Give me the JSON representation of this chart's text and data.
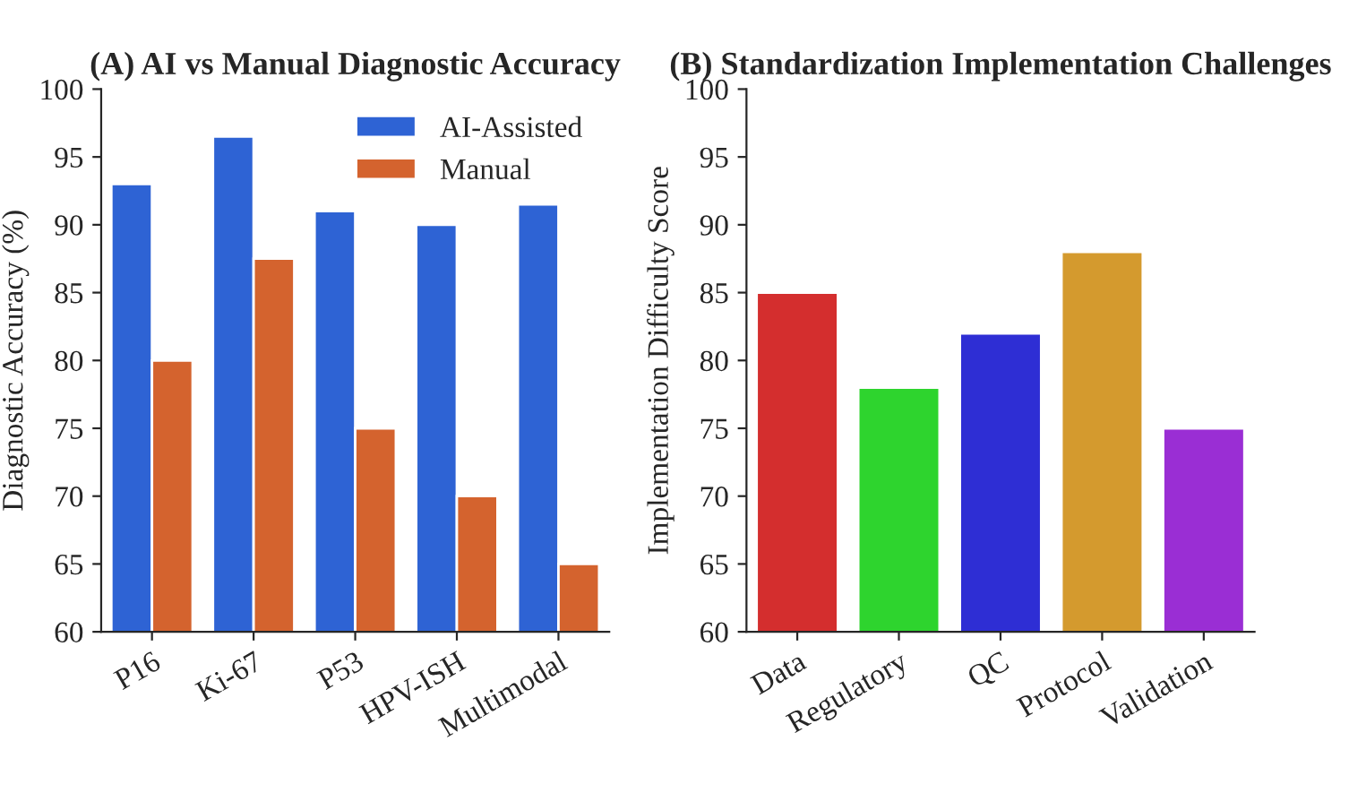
{
  "chart_data": [
    {
      "type": "bar",
      "title": "(A) AI vs Manual Diagnostic Accuracy",
      "ylabel": "Diagnostic Accuracy (%)",
      "categories": [
        "P16",
        "Ki-67",
        "P53",
        "HPV-ISH",
        "Multimodal"
      ],
      "series": [
        {
          "name": "AI-Assisted",
          "color": "#2e63d4",
          "values": [
            93,
            96.5,
            91,
            90,
            91.5
          ]
        },
        {
          "name": "Manual",
          "color": "#d4632e",
          "values": [
            80,
            87.5,
            75,
            70,
            65
          ]
        }
      ],
      "ylim": [
        60,
        100
      ],
      "yticks": [
        60,
        65,
        70,
        75,
        80,
        85,
        90,
        95,
        100
      ],
      "legend": "top right",
      "grid": false
    },
    {
      "type": "bar",
      "title": "(B) Standardization Implementation Challenges",
      "ylabel": "Implementation Difficulty Score",
      "categories": [
        "Data",
        "Regulatory",
        "QC",
        "Protocol",
        "Validation"
      ],
      "values": [
        85,
        78,
        82,
        88,
        75
      ],
      "colors": [
        "#d42e2e",
        "#2ed42e",
        "#2e2ed4",
        "#d49a2e",
        "#9a2ed4"
      ],
      "ylim": [
        60,
        100
      ],
      "yticks": [
        60,
        65,
        70,
        75,
        80,
        85,
        90,
        95,
        100
      ],
      "grid": false
    }
  ]
}
